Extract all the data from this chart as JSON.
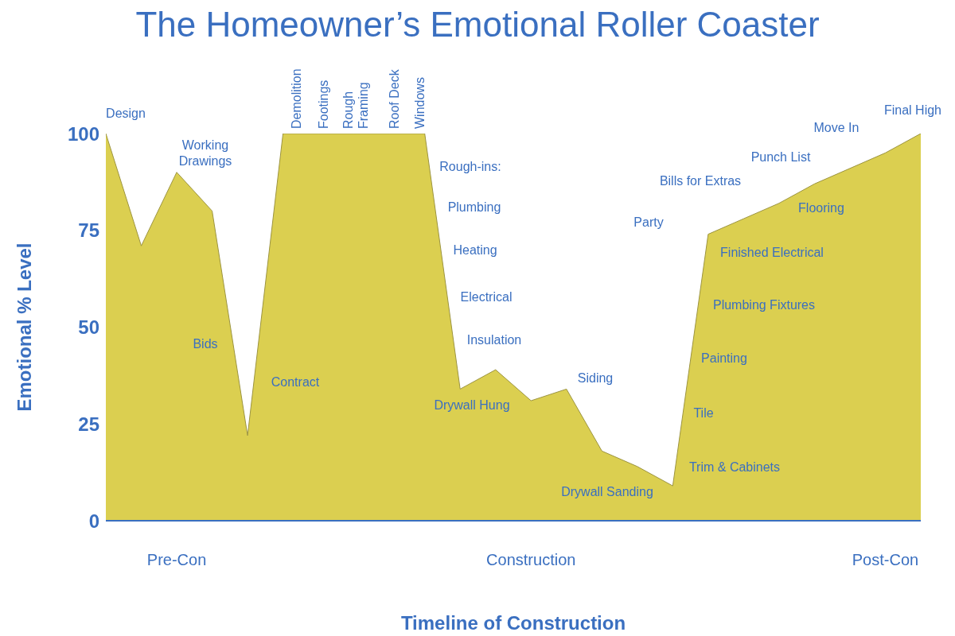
{
  "chart_data": {
    "type": "area",
    "title": "The Homeowner’s Emotional Roller Coaster",
    "xlabel": "Timeline of Construction",
    "ylabel": "Emotional % Level",
    "categories": [
      null,
      null,
      "Pre-Con",
      null,
      null,
      null,
      null,
      null,
      null,
      null,
      null,
      null,
      "Construction",
      null,
      null,
      null,
      null,
      null,
      null,
      null,
      null,
      null,
      "Post-Con",
      null
    ],
    "values": [
      100,
      71,
      90,
      80,
      22,
      100,
      100,
      100,
      100,
      100,
      34,
      39,
      31,
      34,
      18,
      14,
      9,
      74,
      78,
      82,
      87,
      91,
      95,
      100
    ],
    "color": "#dbcf50",
    "ylim": [
      0,
      100
    ],
    "yticks": [
      0,
      25,
      50,
      75,
      100
    ],
    "annotations": [
      "Design",
      "Working\nDrawings",
      "Bids",
      "Contract",
      "Demolition",
      "Footings",
      "Rough\nFraming",
      "Roof Deck",
      "Windows",
      "Rough-ins:",
      "Plumbing",
      "Heating",
      "Electrical",
      "Insulation",
      "Drywall Hung",
      "Siding",
      "Drywall Sanding",
      "Party",
      "Bills for Extras",
      "Punch List",
      "Move In",
      "Final High",
      "Flooring",
      "Finished Electrical",
      "Plumbing Fixtures",
      "Painting",
      "Tile",
      "Trim & Cabinets"
    ]
  }
}
